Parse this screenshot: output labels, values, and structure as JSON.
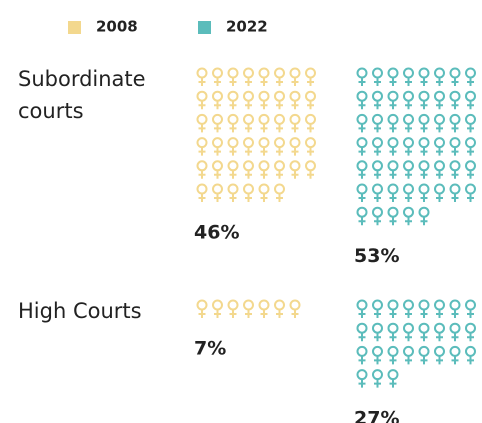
{
  "chart_data": {
    "type": "pictogram",
    "categories": [
      "Subordinate courts",
      "High Courts"
    ],
    "series": [
      {
        "name": "2008",
        "color": "#f3d88e",
        "values": [
          46,
          7
        ],
        "value_labels": [
          "46%",
          "7%"
        ]
      },
      {
        "name": "2022",
        "color": "#5bbcbb",
        "values": [
          53,
          27
        ],
        "value_labels": [
          "53%",
          "27%"
        ]
      }
    ]
  }
}
